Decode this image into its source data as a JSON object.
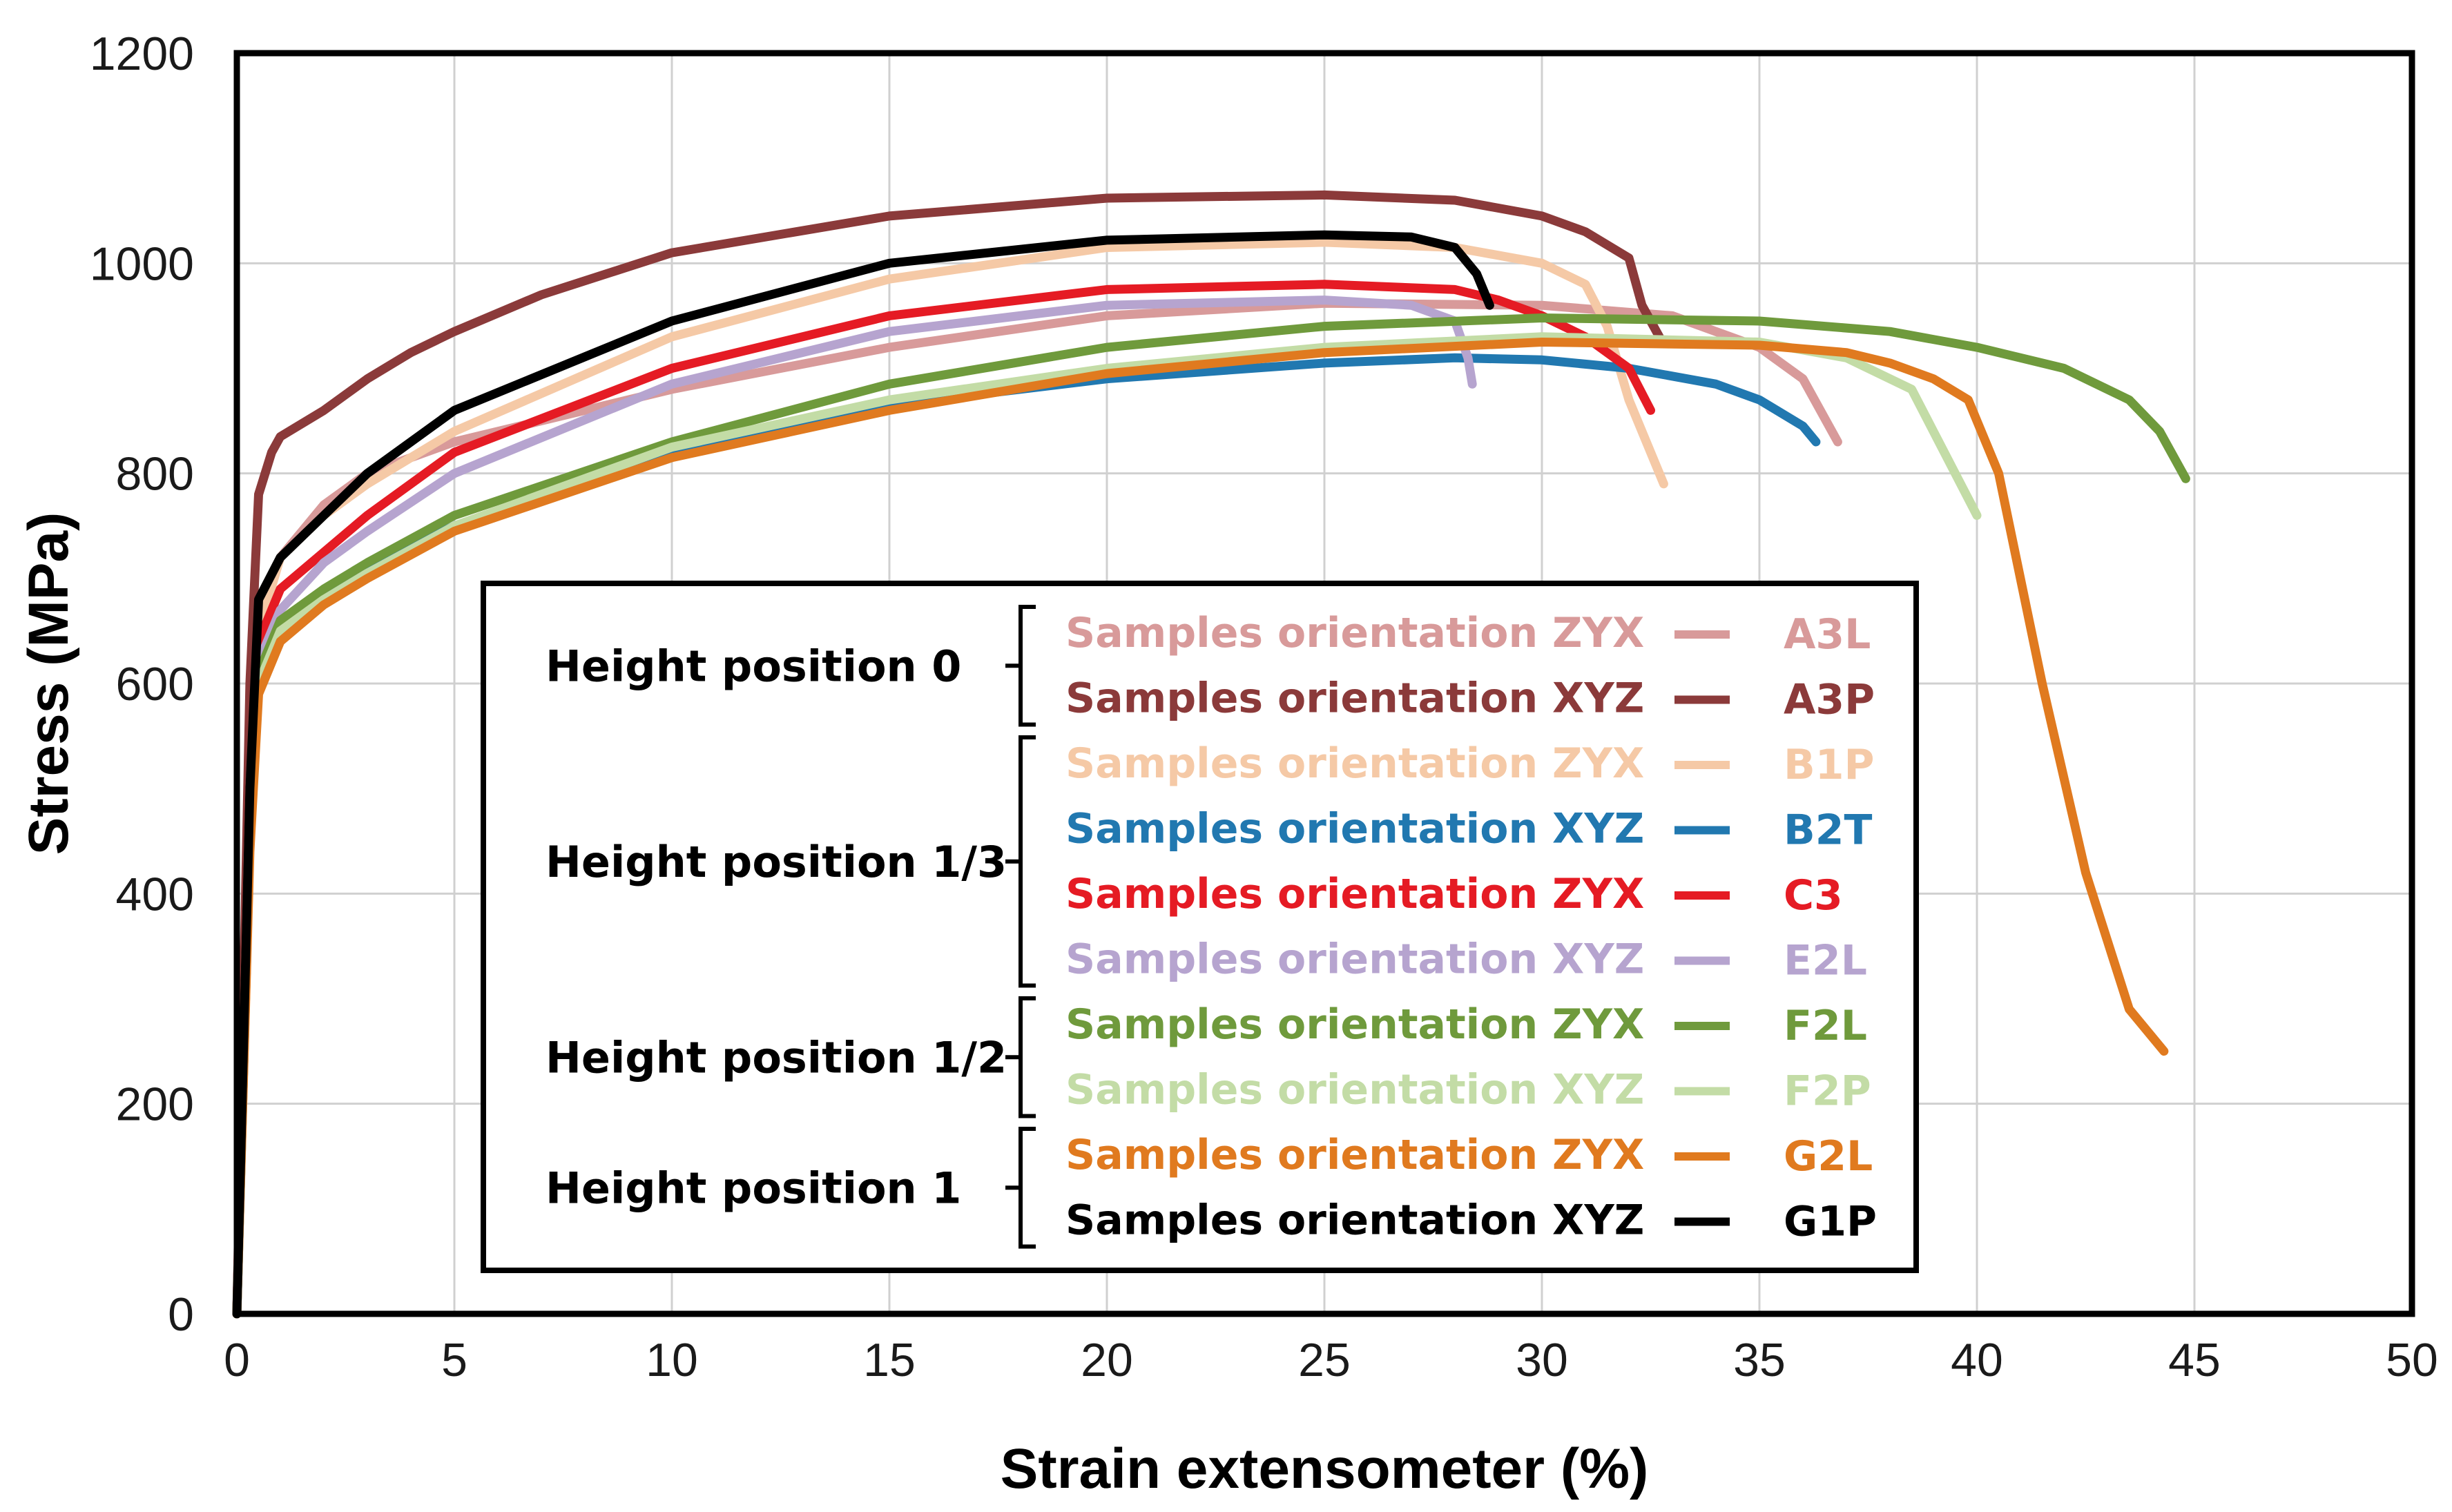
{
  "chart_data": {
    "type": "line",
    "title": "",
    "xlabel": "Strain extensometer (%)",
    "ylabel": "Stress (MPa)",
    "xlim": [
      0,
      50
    ],
    "ylim": [
      0,
      1200
    ],
    "xticks": [
      0,
      5,
      10,
      15,
      20,
      25,
      30,
      35,
      40,
      45,
      50
    ],
    "yticks": [
      0,
      200,
      400,
      600,
      800,
      1000,
      1200
    ],
    "grid": true,
    "legend_position": "center",
    "legend_groups": [
      {
        "label": "Height position 0",
        "series": [
          "A3L",
          "A3P"
        ]
      },
      {
        "label": "Height position 1/3",
        "series": [
          "B1P",
          "B2T",
          "C3",
          "E2L"
        ]
      },
      {
        "label": "Height position 1/2",
        "series": [
          "F2L",
          "F2P"
        ]
      },
      {
        "label": "Height position 1",
        "series": [
          "G2L",
          "G1P"
        ]
      }
    ],
    "series": [
      {
        "name": "A3L",
        "description": "Samples orientation ZYX",
        "color": "#d89a9a",
        "x": [
          0,
          0.3,
          0.5,
          1,
          2,
          3,
          5,
          10,
          15,
          20,
          25,
          30,
          33,
          35,
          36,
          36.8
        ],
        "y": [
          0,
          500,
          660,
          720,
          770,
          800,
          830,
          880,
          920,
          950,
          962,
          960,
          950,
          920,
          890,
          830
        ]
      },
      {
        "name": "A3P",
        "description": "Samples orientation XYZ",
        "color": "#8b3a3a",
        "x": [
          0,
          0.3,
          0.5,
          0.8,
          1,
          2,
          3,
          4,
          5,
          7,
          10,
          15,
          20,
          25,
          28,
          30,
          31,
          32,
          32.3,
          32.7
        ],
        "y": [
          0,
          600,
          780,
          820,
          835,
          860,
          890,
          915,
          935,
          970,
          1010,
          1045,
          1062,
          1065,
          1060,
          1045,
          1030,
          1005,
          960,
          930
        ]
      },
      {
        "name": "B1P",
        "description": "Samples orientation ZYX",
        "color": "#f5c9a6",
        "x": [
          0,
          0.3,
          0.5,
          1,
          2,
          3,
          5,
          10,
          15,
          20,
          25,
          28,
          30,
          31,
          31.5,
          32,
          32.8
        ],
        "y": [
          0,
          500,
          650,
          720,
          760,
          790,
          840,
          930,
          985,
          1015,
          1020,
          1015,
          1000,
          980,
          940,
          870,
          790
        ]
      },
      {
        "name": "B2T",
        "description": "Samples orientation XYZ",
        "color": "#2178b0",
        "x": [
          0,
          0.3,
          0.5,
          1,
          2,
          3,
          5,
          10,
          15,
          20,
          25,
          28,
          30,
          32,
          34,
          35,
          36,
          36.3
        ],
        "y": [
          0,
          450,
          600,
          650,
          685,
          710,
          750,
          820,
          865,
          890,
          905,
          910,
          908,
          900,
          885,
          870,
          845,
          830
        ]
      },
      {
        "name": "C3",
        "description": "Samples orientation ZYX",
        "color": "#e51b24",
        "x": [
          0,
          0.3,
          0.5,
          1,
          2,
          3,
          5,
          10,
          15,
          20,
          25,
          28,
          29,
          30,
          31,
          32,
          32.5
        ],
        "y": [
          0,
          500,
          640,
          690,
          725,
          760,
          820,
          900,
          950,
          975,
          980,
          975,
          965,
          950,
          930,
          900,
          860
        ]
      },
      {
        "name": "E2L",
        "description": "Samples orientation XYZ",
        "color": "#b6a4cf",
        "x": [
          0,
          0.3,
          0.5,
          1,
          2,
          3,
          5,
          10,
          15,
          20,
          25,
          27,
          28,
          28.3,
          28.4
        ],
        "y": [
          0,
          480,
          620,
          670,
          715,
          745,
          800,
          885,
          935,
          960,
          965,
          960,
          945,
          910,
          885
        ]
      },
      {
        "name": "F2L",
        "description": "Samples orientation ZYX",
        "color": "#6f9a3c",
        "x": [
          0,
          0.3,
          0.5,
          1,
          2,
          3,
          5,
          10,
          15,
          20,
          25,
          30,
          35,
          38,
          40,
          42,
          43.5,
          44.2,
          44.8
        ],
        "y": [
          0,
          450,
          610,
          660,
          690,
          715,
          760,
          830,
          885,
          920,
          940,
          948,
          945,
          935,
          920,
          900,
          870,
          840,
          795
        ]
      },
      {
        "name": "F2P",
        "description": "Samples orientation XYZ",
        "color": "#c3dca6",
        "x": [
          0,
          0.3,
          0.5,
          1,
          2,
          3,
          5,
          10,
          15,
          20,
          25,
          30,
          35,
          37,
          38.5,
          39,
          39.5,
          40
        ],
        "y": [
          0,
          450,
          600,
          650,
          680,
          705,
          750,
          825,
          870,
          900,
          920,
          930,
          925,
          910,
          880,
          840,
          800,
          760
        ]
      },
      {
        "name": "G2L",
        "description": "Samples orientation ZYX",
        "color": "#e07a1f",
        "x": [
          0,
          0.3,
          0.5,
          1,
          2,
          3,
          5,
          10,
          15,
          20,
          25,
          30,
          35,
          37,
          38,
          39,
          39.8,
          40.5,
          41.5,
          42.5,
          43.5,
          44.3
        ],
        "y": [
          0,
          440,
          590,
          640,
          675,
          700,
          745,
          815,
          860,
          895,
          915,
          925,
          922,
          915,
          905,
          890,
          870,
          800,
          600,
          420,
          290,
          250
        ]
      },
      {
        "name": "G1P",
        "description": "Samples orientation XYZ",
        "color": "#000000",
        "x": [
          0,
          0.3,
          0.5,
          1,
          2,
          3,
          5,
          10,
          15,
          20,
          25,
          27,
          28,
          28.5,
          28.8
        ],
        "y": [
          0,
          500,
          680,
          720,
          760,
          800,
          860,
          945,
          1000,
          1022,
          1027,
          1025,
          1015,
          990,
          960
        ]
      }
    ]
  }
}
